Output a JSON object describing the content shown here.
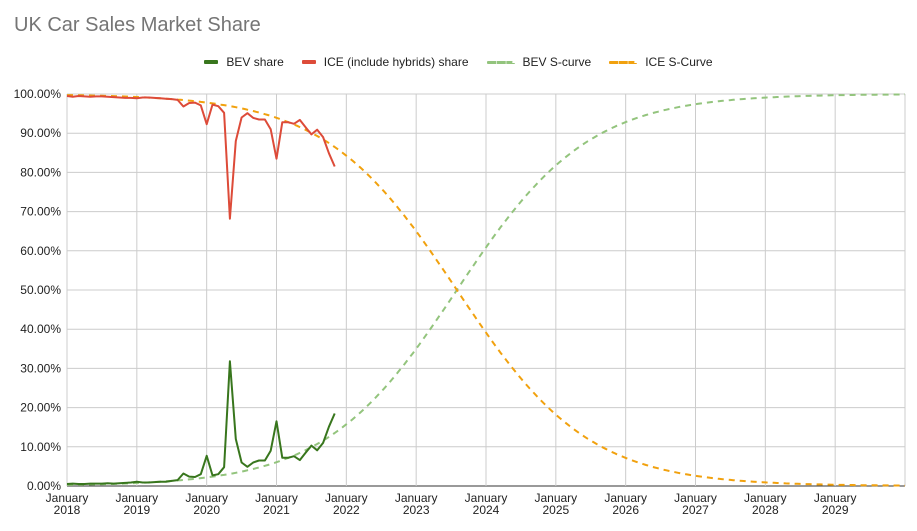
{
  "chart_data": {
    "type": "line",
    "title": "UK Car Sales Market Share",
    "xlabel": "",
    "ylabel": "",
    "x_tick_labels": [
      [
        "January",
        "2018"
      ],
      [
        "January",
        "2019"
      ],
      [
        "January",
        "2020"
      ],
      [
        "January",
        "2021"
      ],
      [
        "January",
        "2022"
      ],
      [
        "January",
        "2023"
      ],
      [
        "January",
        "2024"
      ],
      [
        "January",
        "2025"
      ],
      [
        "January",
        "2026"
      ],
      [
        "January",
        "2027"
      ],
      [
        "January",
        "2028"
      ],
      [
        "January",
        "2029"
      ]
    ],
    "y_tick_labels": [
      "0.00%",
      "10.00%",
      "20.00%",
      "30.00%",
      "40.00%",
      "50.00%",
      "60.00%",
      "70.00%",
      "80.00%",
      "90.00%",
      "100.00%"
    ],
    "xlim": [
      "2018-01",
      "2030-01"
    ],
    "ylim": [
      0,
      100
    ],
    "grid": true,
    "legend_position": "top",
    "series": [
      {
        "name": "BEV share",
        "color": "#38761d",
        "style": "solid",
        "x": [
          "2018-01",
          "2018-02",
          "2018-03",
          "2018-04",
          "2018-05",
          "2018-06",
          "2018-07",
          "2018-08",
          "2018-09",
          "2018-10",
          "2018-11",
          "2018-12",
          "2019-01",
          "2019-02",
          "2019-03",
          "2019-04",
          "2019-05",
          "2019-06",
          "2019-07",
          "2019-08",
          "2019-09",
          "2019-10",
          "2019-11",
          "2019-12",
          "2020-01",
          "2020-02",
          "2020-03",
          "2020-04",
          "2020-05",
          "2020-06",
          "2020-07",
          "2020-08",
          "2020-09",
          "2020-10",
          "2020-11",
          "2020-12",
          "2021-01",
          "2021-02",
          "2021-03",
          "2021-04",
          "2021-05",
          "2021-06",
          "2021-07",
          "2021-08",
          "2021-09",
          "2021-10",
          "2021-11"
        ],
        "values": [
          0.5,
          0.6,
          0.5,
          0.5,
          0.6,
          0.6,
          0.6,
          0.7,
          0.6,
          0.7,
          0.8,
          0.9,
          1.1,
          0.9,
          0.9,
          1.0,
          1.1,
          1.1,
          1.3,
          1.5,
          3.2,
          2.4,
          2.3,
          3.0,
          7.7,
          2.7,
          3.0,
          4.8,
          31.8,
          12.0,
          6.0,
          4.9,
          6.0,
          6.5,
          6.5,
          9.0,
          16.5,
          7.2,
          7.2,
          7.6,
          6.6,
          8.5,
          10.3,
          9.1,
          11.0,
          15.1,
          18.5
        ]
      },
      {
        "name": "ICE (include hybrids) share",
        "color": "#dd4b39",
        "style": "solid",
        "x": [
          "2018-01",
          "2018-02",
          "2018-03",
          "2018-04",
          "2018-05",
          "2018-06",
          "2018-07",
          "2018-08",
          "2018-09",
          "2018-10",
          "2018-11",
          "2018-12",
          "2019-01",
          "2019-02",
          "2019-03",
          "2019-04",
          "2019-05",
          "2019-06",
          "2019-07",
          "2019-08",
          "2019-09",
          "2019-10",
          "2019-11",
          "2019-12",
          "2020-01",
          "2020-02",
          "2020-03",
          "2020-04",
          "2020-05",
          "2020-06",
          "2020-07",
          "2020-08",
          "2020-09",
          "2020-10",
          "2020-11",
          "2020-12",
          "2021-01",
          "2021-02",
          "2021-03",
          "2021-04",
          "2021-05",
          "2021-06",
          "2021-07",
          "2021-08",
          "2021-09",
          "2021-10",
          "2021-11"
        ],
        "values": [
          99.5,
          99.3,
          99.5,
          99.4,
          99.3,
          99.4,
          99.4,
          99.3,
          99.2,
          99.1,
          99.0,
          99.0,
          98.9,
          99.1,
          99.1,
          99.0,
          98.9,
          98.8,
          98.7,
          98.5,
          96.8,
          97.7,
          97.8,
          97.1,
          92.3,
          97.3,
          96.9,
          95.2,
          68.2,
          88.0,
          94.0,
          95.1,
          93.9,
          93.5,
          93.5,
          91.0,
          83.5,
          92.8,
          92.8,
          92.4,
          93.4,
          91.5,
          89.7,
          90.9,
          89.0,
          84.9,
          81.5
        ]
      },
      {
        "name": "BEV S-curve",
        "color": "#93c47d",
        "style": "dashed",
        "model": "logistic",
        "midpoint": "2023-08",
        "rate_per_year": 1.06,
        "x_range": [
          "2018-01",
          "2030-01"
        ]
      },
      {
        "name": "ICE S-Curve",
        "color": "#f1a10e",
        "style": "dashed",
        "model": "1 - logistic",
        "midpoint": "2023-08",
        "rate_per_year": 1.06,
        "x_range": [
          "2018-01",
          "2030-01"
        ]
      }
    ]
  }
}
